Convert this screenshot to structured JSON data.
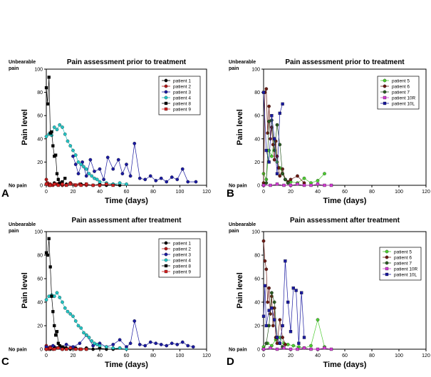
{
  "labels": {
    "unbearable": "Unbearable\npain",
    "no_pain": "No pain"
  },
  "chart_data": [
    {
      "id": "A",
      "type": "line",
      "title": "Pain assessment prior to treatment",
      "xlabel": "Time (days)",
      "ylabel": "Pain level",
      "xlim": [
        0,
        120
      ],
      "ylim": [
        0,
        100
      ],
      "xticks": [
        0,
        20,
        40,
        60,
        80,
        100,
        120
      ],
      "yticks": [
        0,
        20,
        40,
        60,
        80,
        100
      ],
      "series": [
        {
          "name": "patient 1",
          "color": "#000000",
          "marker": "circle",
          "x": [
            0,
            3,
            6,
            9,
            12,
            15,
            18,
            22,
            26,
            30,
            35,
            40,
            45,
            50,
            55
          ],
          "y": [
            1,
            0,
            2,
            1,
            0,
            1,
            2,
            0,
            1,
            1,
            0,
            1,
            0,
            1,
            0
          ]
        },
        {
          "name": "patient 2",
          "color": "#b01818",
          "marker": "circle",
          "x": [
            0,
            1,
            2,
            3,
            5,
            8,
            12,
            18,
            25,
            30
          ],
          "y": [
            5,
            2,
            0,
            1,
            0,
            1,
            0,
            2,
            1,
            0
          ]
        },
        {
          "name": "patient 3",
          "color": "#1a1aa0",
          "marker": "circle",
          "x": [
            20,
            22,
            24,
            27,
            30,
            33,
            36,
            40,
            43,
            46,
            50,
            54,
            57,
            60,
            63,
            66,
            70,
            74,
            78,
            82,
            86,
            90,
            94,
            98,
            102,
            106,
            112
          ],
          "y": [
            25,
            18,
            10,
            20,
            8,
            22,
            12,
            14,
            5,
            24,
            14,
            22,
            10,
            18,
            8,
            36,
            6,
            5,
            8,
            4,
            6,
            3,
            7,
            5,
            14,
            3,
            3
          ]
        },
        {
          "name": "patient 4",
          "color": "#22c4c4",
          "marker": "circle",
          "x": [
            0,
            2,
            4,
            6,
            8,
            10,
            12,
            14,
            16,
            18,
            20,
            22,
            24,
            26,
            28,
            30,
            32,
            34,
            36,
            38,
            40,
            45,
            50,
            55,
            60
          ],
          "y": [
            42,
            44,
            43,
            50,
            48,
            52,
            50,
            44,
            38,
            34,
            30,
            26,
            20,
            18,
            16,
            14,
            10,
            8,
            6,
            5,
            3,
            2,
            1,
            2,
            1
          ]
        },
        {
          "name": "patient 8",
          "color": "#000000",
          "marker": "square",
          "x": [
            0,
            1,
            2,
            3,
            4,
            5,
            6,
            7,
            8,
            9,
            10,
            12,
            14
          ],
          "y": [
            84,
            70,
            93,
            45,
            46,
            34,
            25,
            26,
            10,
            5,
            2,
            3,
            6
          ]
        },
        {
          "name": "patient 9",
          "color": "#d42020",
          "marker": "square",
          "x": [
            0,
            3,
            6,
            9,
            12,
            15,
            18,
            22,
            26,
            30,
            35,
            40,
            45,
            50
          ],
          "y": [
            1,
            0,
            1,
            0,
            1,
            0,
            1,
            0,
            0,
            1,
            0,
            0,
            1,
            0
          ]
        }
      ]
    },
    {
      "id": "B",
      "type": "line",
      "title": "Pain assessment prior to treatment",
      "xlabel": "Time (days)",
      "ylabel": "Pain level",
      "xlim": [
        0,
        120
      ],
      "ylim": [
        0,
        100
      ],
      "xticks": [
        0,
        20,
        40,
        60,
        80,
        100,
        120
      ],
      "yticks": [
        0,
        20,
        40,
        60,
        80,
        100
      ],
      "series": [
        {
          "name": "patient 5",
          "color": "#4ccc30",
          "marker": "circle",
          "x": [
            0,
            2,
            4,
            6,
            8,
            10,
            12,
            14,
            16,
            18,
            20,
            25,
            30,
            35,
            40,
            45
          ],
          "y": [
            10,
            5,
            30,
            25,
            40,
            20,
            15,
            10,
            5,
            2,
            3,
            2,
            6,
            2,
            4,
            10
          ]
        },
        {
          "name": "patient 6",
          "color": "#6a1a14",
          "marker": "circle",
          "x": [
            0,
            1,
            2,
            3,
            4,
            5,
            6,
            7,
            8,
            9,
            10,
            11,
            12,
            14,
            16,
            18,
            20,
            25,
            30
          ],
          "y": [
            2,
            80,
            83,
            45,
            68,
            40,
            50,
            35,
            22,
            38,
            25,
            15,
            8,
            14,
            5,
            3,
            5,
            8,
            2
          ]
        },
        {
          "name": "patient 7",
          "color": "#2a5a22",
          "marker": "circle",
          "x": [
            0,
            2,
            4,
            6,
            8,
            10,
            12,
            14,
            16,
            18
          ],
          "y": [
            0,
            2,
            55,
            56,
            30,
            52,
            35,
            10,
            5,
            2
          ]
        },
        {
          "name": "patient 10R",
          "color": "#d43cd4",
          "marker": "square",
          "x": [
            0,
            5,
            10,
            15,
            20,
            25,
            30,
            35,
            40,
            45,
            50
          ],
          "y": [
            0,
            0,
            1,
            0,
            0,
            1,
            0,
            0,
            1,
            0,
            0
          ]
        },
        {
          "name": "patient 10L",
          "color": "#1a1aa0",
          "marker": "square",
          "x": [
            0,
            2,
            4,
            6,
            8,
            10,
            12,
            14
          ],
          "y": [
            80,
            30,
            20,
            60,
            40,
            10,
            62,
            70
          ]
        }
      ]
    },
    {
      "id": "C",
      "type": "line",
      "title": "Pain assessment after treatment",
      "xlabel": "Time (days)",
      "ylabel": "Pain level",
      "xlim": [
        0,
        120
      ],
      "ylim": [
        0,
        100
      ],
      "xticks": [
        0,
        20,
        40,
        60,
        80,
        100,
        120
      ],
      "yticks": [
        0,
        20,
        40,
        60,
        80,
        100
      ],
      "series": [
        {
          "name": "patient 1",
          "color": "#000000",
          "marker": "circle",
          "x": [
            0,
            3,
            6,
            9,
            12,
            15,
            18,
            22,
            26,
            30,
            35,
            40,
            45,
            50,
            55
          ],
          "y": [
            1,
            0,
            2,
            1,
            0,
            1,
            0,
            1,
            0,
            1,
            0,
            1,
            0,
            0,
            1
          ]
        },
        {
          "name": "patient 2",
          "color": "#b01818",
          "marker": "circle",
          "x": [
            0,
            1,
            2,
            3,
            5,
            8,
            12,
            18,
            25,
            30
          ],
          "y": [
            3,
            1,
            0,
            2,
            0,
            1,
            0,
            1,
            0,
            0
          ]
        },
        {
          "name": "patient 3",
          "color": "#1a1aa0",
          "marker": "circle",
          "x": [
            0,
            5,
            10,
            15,
            20,
            25,
            30,
            35,
            40,
            45,
            50,
            55,
            60,
            63,
            66,
            70,
            74,
            78,
            82,
            86,
            90,
            94,
            98,
            102,
            106,
            110
          ],
          "y": [
            2,
            3,
            1,
            4,
            2,
            5,
            12,
            3,
            5,
            2,
            4,
            8,
            2,
            5,
            24,
            4,
            3,
            6,
            5,
            4,
            3,
            5,
            4,
            6,
            3,
            2
          ]
        },
        {
          "name": "patient 4",
          "color": "#22c4c4",
          "marker": "circle",
          "x": [
            0,
            2,
            4,
            6,
            8,
            10,
            12,
            14,
            16,
            18,
            20,
            22,
            24,
            26,
            28,
            30,
            32,
            34,
            36,
            38,
            40,
            45,
            50,
            55,
            60
          ],
          "y": [
            42,
            45,
            46,
            45,
            48,
            44,
            40,
            35,
            32,
            30,
            28,
            24,
            20,
            18,
            14,
            12,
            10,
            7,
            5,
            4,
            3,
            2,
            1,
            1,
            0
          ]
        },
        {
          "name": "patient 8",
          "color": "#000000",
          "marker": "square",
          "x": [
            0,
            1,
            2,
            3,
            4,
            5,
            6,
            7,
            8,
            9,
            10,
            12,
            14
          ],
          "y": [
            82,
            80,
            94,
            70,
            45,
            32,
            20,
            12,
            15,
            5,
            3,
            2,
            1
          ]
        },
        {
          "name": "patient 9",
          "color": "#d42020",
          "marker": "square",
          "x": [
            0,
            3,
            6,
            9,
            12,
            15,
            18,
            22,
            26,
            30
          ],
          "y": [
            0,
            1,
            0,
            1,
            0,
            0,
            1,
            0,
            0,
            0
          ]
        }
      ]
    },
    {
      "id": "D",
      "type": "line",
      "title": "Pain assessment after treatment",
      "xlabel": "Time (days)",
      "ylabel": "Pain level",
      "xlim": [
        0,
        120
      ],
      "ylim": [
        0,
        100
      ],
      "xticks": [
        0,
        20,
        40,
        60,
        80,
        100,
        120
      ],
      "yticks": [
        0,
        20,
        40,
        60,
        80,
        100
      ],
      "series": [
        {
          "name": "patient 5",
          "color": "#4ccc30",
          "marker": "circle",
          "x": [
            0,
            3,
            6,
            9,
            12,
            15,
            18,
            22,
            26,
            30,
            35,
            40,
            45
          ],
          "y": [
            2,
            5,
            3,
            8,
            10,
            5,
            4,
            3,
            2,
            1,
            3,
            25,
            2
          ]
        },
        {
          "name": "patient 6",
          "color": "#6a1a14",
          "marker": "circle",
          "x": [
            0,
            1,
            2,
            3,
            4,
            5,
            6,
            7,
            8,
            9,
            10,
            12,
            14,
            16
          ],
          "y": [
            92,
            75,
            68,
            40,
            52,
            30,
            45,
            20,
            35,
            10,
            5,
            25,
            10,
            4
          ]
        },
        {
          "name": "patient 7",
          "color": "#2a5a22",
          "marker": "circle",
          "x": [
            0,
            2,
            4,
            6,
            8,
            10,
            12,
            14
          ],
          "y": [
            0,
            5,
            20,
            48,
            40,
            10,
            5,
            2
          ]
        },
        {
          "name": "patient 10R",
          "color": "#d43cd4",
          "marker": "square",
          "x": [
            0,
            5,
            10,
            15,
            20,
            25,
            30,
            35,
            40,
            45,
            50
          ],
          "y": [
            0,
            1,
            0,
            1,
            0,
            0,
            1,
            0,
            0,
            1,
            0
          ]
        },
        {
          "name": "patient 10L",
          "color": "#1a1aa0",
          "marker": "square",
          "x": [
            0,
            1,
            2,
            4,
            6,
            8,
            10,
            12,
            14,
            16,
            18,
            20,
            22,
            24,
            26,
            28,
            30
          ],
          "y": [
            28,
            54,
            20,
            33,
            35,
            25,
            10,
            5,
            20,
            75,
            40,
            15,
            52,
            50,
            5,
            48,
            10
          ]
        }
      ]
    }
  ]
}
